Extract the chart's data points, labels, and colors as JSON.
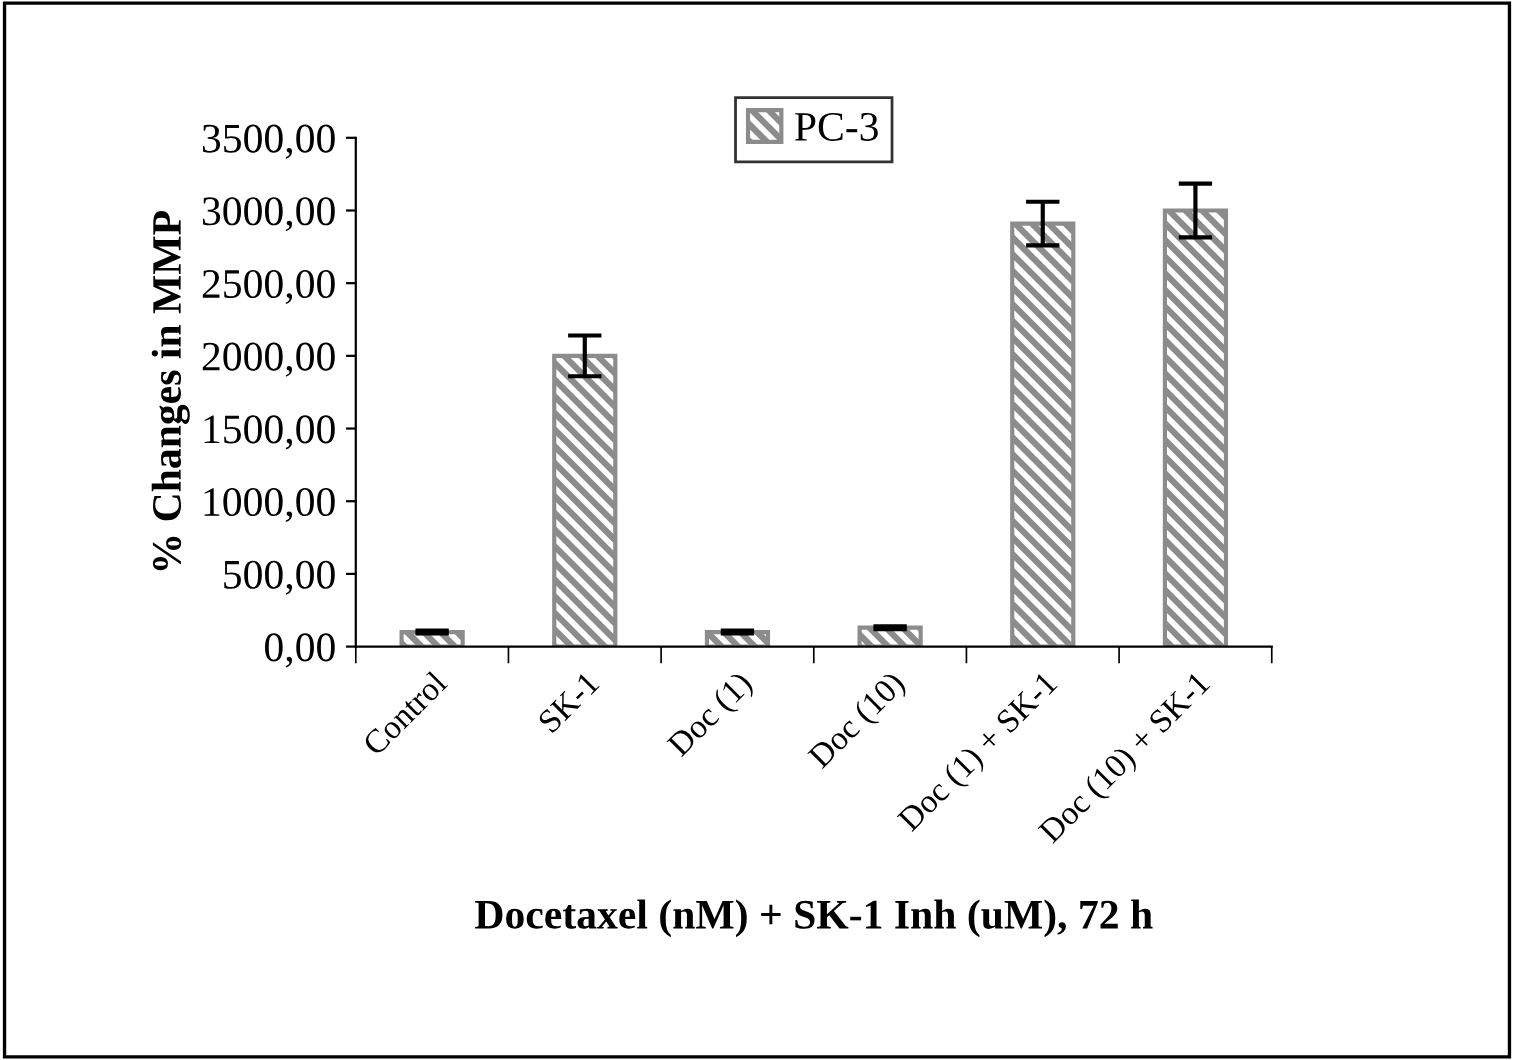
{
  "chart_data": {
    "type": "bar",
    "xlabel": "Docetaxel (nM) + SK-1 Inh (uM), 72 h",
    "ylabel": "% Changes in MMP",
    "categories": [
      "Control",
      "SK-1",
      "Doc (1)",
      "Doc (10)",
      "Doc (1) + SK-1",
      "Doc (10) + SK-1"
    ],
    "series": [
      {
        "name": "PC-3",
        "color": "#8c8c8c",
        "values": [
          100,
          2000,
          100,
          130,
          2910,
          3000
        ],
        "errors": [
          10,
          140,
          10,
          10,
          150,
          185
        ]
      }
    ],
    "ylim": [
      0,
      3500
    ],
    "yticks": [
      {
        "value": 0,
        "label": "0,00"
      },
      {
        "value": 500,
        "label": "500,00"
      },
      {
        "value": 1000,
        "label": "1000,00"
      },
      {
        "value": 1500,
        "label": "1500,00"
      },
      {
        "value": 2000,
        "label": "2000,00"
      },
      {
        "value": 2500,
        "label": "2500,00"
      },
      {
        "value": 3000,
        "label": "3000,00"
      },
      {
        "value": 3500,
        "label": "3500,00"
      }
    ],
    "grid": false,
    "legend": "top"
  }
}
